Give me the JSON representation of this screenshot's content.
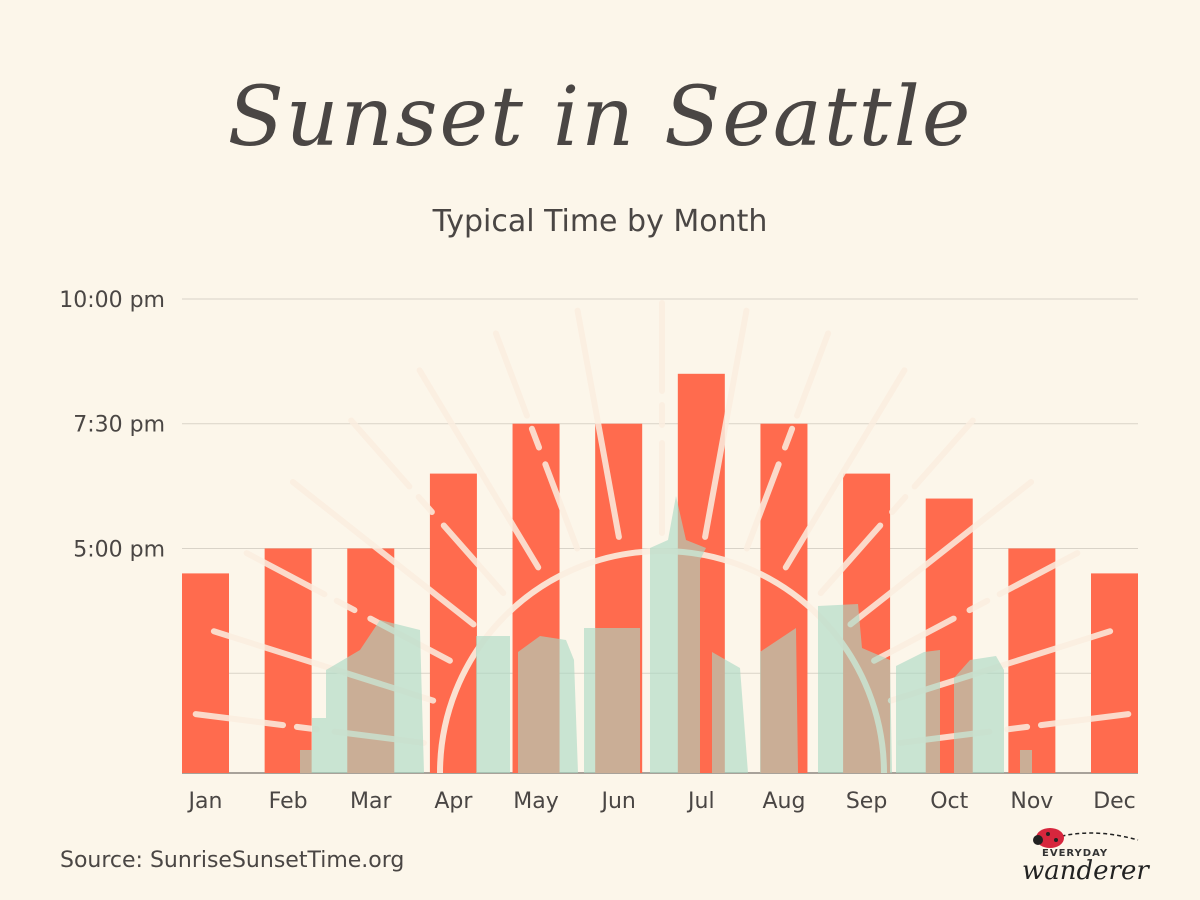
{
  "header": {
    "title": "Sunset in Seattle",
    "subtitle": "Typical Time by Month"
  },
  "footer": {
    "source": "Source: SunriseSunsetTime.org",
    "logo_top": "EVERYDAY",
    "logo_bottom": "wanderer"
  },
  "colors": {
    "background": "#fcf6ea",
    "bar": "#ff6b4e",
    "text": "#4a4644",
    "grid": "#d9d3c8",
    "skyline": "#a9d8c4",
    "sun_lines": "#fbeee0"
  },
  "chart_data": {
    "type": "bar",
    "title": "Sunset in Seattle",
    "subtitle": "Typical Time by Month",
    "categories": [
      "Jan",
      "Feb",
      "Mar",
      "Apr",
      "May",
      "Jun",
      "Jul",
      "Aug",
      "Sep",
      "Oct",
      "Nov",
      "Dec"
    ],
    "values_hours": [
      16.5,
      17.0,
      17.0,
      18.5,
      19.5,
      19.5,
      20.5,
      19.5,
      18.5,
      18.0,
      17.0,
      16.5
    ],
    "ylim_hours": [
      12.5,
      22.5
    ],
    "y_ticks": [
      {
        "value": 22.0,
        "label": "10:00 pm"
      },
      {
        "value": 19.5,
        "label": "7:30 pm"
      },
      {
        "value": 17.0,
        "label": "5:00 pm"
      },
      {
        "value": 14.5,
        "label": ""
      }
    ],
    "grid": true,
    "legend": "none"
  }
}
